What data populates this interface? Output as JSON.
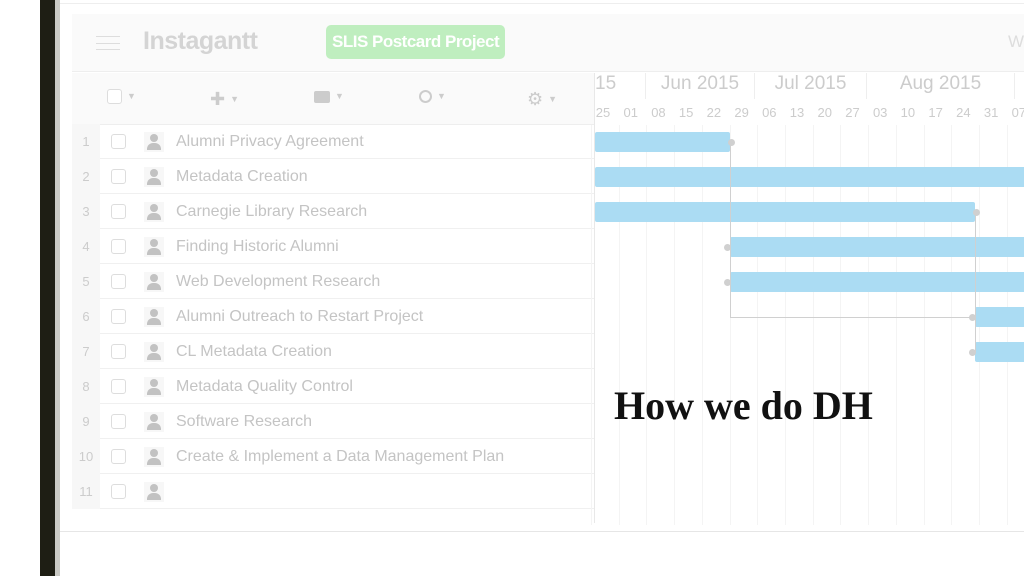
{
  "app": {
    "name": "Instagantt",
    "project": "SLIS Postcard Project",
    "header_right_partial": "W"
  },
  "toolbar": [
    {
      "icon": "checkbox-icon"
    },
    {
      "icon": "plus-icon",
      "glyph": "✚"
    },
    {
      "icon": "camera-icon",
      "glyph": "📷"
    },
    {
      "icon": "zoom-icon",
      "glyph": "🔍"
    },
    {
      "icon": "gear-icon",
      "glyph": "⚙"
    }
  ],
  "months": [
    {
      "label": "15"
    },
    {
      "label": "Jun 2015"
    },
    {
      "label": "Jul 2015"
    },
    {
      "label": "Aug 2015"
    },
    {
      "label": "S"
    }
  ],
  "days": [
    "25",
    "01",
    "08",
    "15",
    "22",
    "29",
    "06",
    "13",
    "20",
    "27",
    "03",
    "10",
    "17",
    "24",
    "31",
    "07"
  ],
  "tasks": [
    {
      "n": "1",
      "name": "Alumni Privacy Agreement",
      "start": "2015-05-23",
      "end": "2015-06-26"
    },
    {
      "n": "2",
      "name": "Metadata Creation",
      "start": "2015-05-23",
      "end": "2015-10-01"
    },
    {
      "n": "3",
      "name": "Carnegie Library Research",
      "start": "2015-05-23",
      "end": "2015-08-27"
    },
    {
      "n": "4",
      "name": "Finding Historic Alumni",
      "start": "2015-06-26",
      "end": "2015-10-01"
    },
    {
      "n": "5",
      "name": "Web Development Research",
      "start": "2015-06-26",
      "end": "2015-10-01"
    },
    {
      "n": "6",
      "name": "Alumni Outreach to Restart Project",
      "start": "2015-08-27",
      "end": "2015-10-01"
    },
    {
      "n": "7",
      "name": "CL Metadata Creation",
      "start": "2015-08-27",
      "end": "2015-10-01"
    },
    {
      "n": "8",
      "name": "Metadata Quality Control"
    },
    {
      "n": "9",
      "name": "Software Research"
    },
    {
      "n": "10",
      "name": "Create & Implement a Data Management Plan"
    },
    {
      "n": "11",
      "name": ""
    }
  ],
  "bar_color": "#abdcf3",
  "project_badge_color": "#bfeebf",
  "caption": "How we do DH"
}
